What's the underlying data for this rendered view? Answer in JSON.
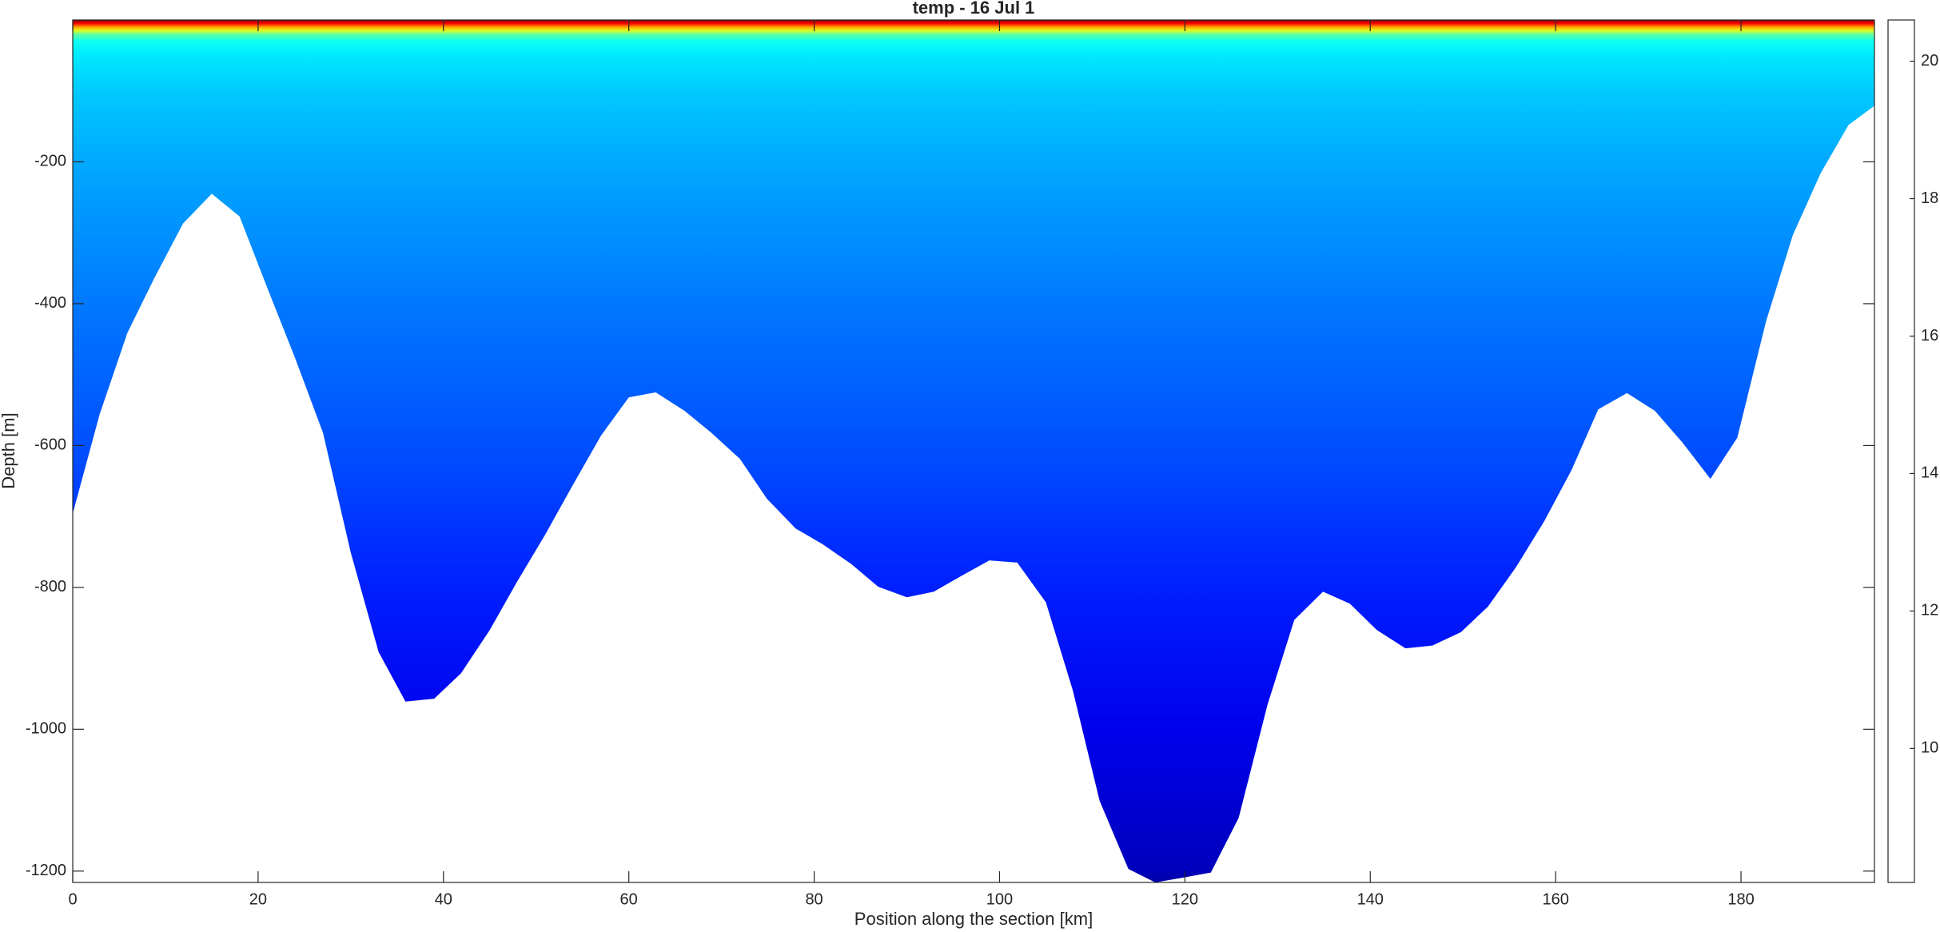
{
  "chart_data": {
    "type": "section",
    "title": "temp - 16 Jul 1",
    "xlabel": "Position along the section [km]",
    "ylabel": "Depth [m]",
    "xlim": [
      0,
      194.4
    ],
    "ylim": [
      -1216,
      0
    ],
    "xticks": [
      0,
      20,
      40,
      60,
      80,
      100,
      120,
      140,
      160,
      180
    ],
    "yticks": [
      -1200,
      -1000,
      -800,
      -600,
      -400,
      -200
    ],
    "colormap": "jet",
    "clim": [
      8.05,
      20.6
    ],
    "cticks": [
      10,
      12,
      14,
      16,
      18,
      20
    ],
    "bottom_x": [
      0,
      2.9,
      5.9,
      8.8,
      11.9,
      15.0,
      18.0,
      21.0,
      24.0,
      27.0,
      30.0,
      33.0,
      35.9,
      39.0,
      41.9,
      45.0,
      47.9,
      51.0,
      53.9,
      57.0,
      60.0,
      62.9,
      66.0,
      68.9,
      72.0,
      74.9,
      78.0,
      80.9,
      84.0,
      86.9,
      90.0,
      92.9,
      96.0,
      98.9,
      101.9,
      105.0,
      107.9,
      110.8,
      113.9,
      116.8,
      119.9,
      122.8,
      125.8,
      128.9,
      131.8,
      134.9,
      137.8,
      140.7,
      143.8,
      146.7,
      149.8,
      152.7,
      155.7,
      158.8,
      161.7,
      164.6,
      167.7,
      170.7,
      173.7,
      176.7,
      179.6,
      182.7,
      185.6,
      188.6,
      191.6,
      194.4
    ],
    "bottom_depth": [
      -696,
      -556,
      -441,
      -364,
      -287,
      -245,
      -277,
      -378,
      -477,
      -582,
      -751,
      -891,
      -961,
      -957,
      -921,
      -860,
      -793,
      -725,
      -657,
      -586,
      -532,
      -525,
      -551,
      -582,
      -619,
      -675,
      -717,
      -739,
      -767,
      -799,
      -814,
      -806,
      -783,
      -762,
      -765,
      -821,
      -945,
      -1101,
      -1197,
      -1216,
      -1209,
      -1202,
      -1125,
      -966,
      -846,
      -806,
      -823,
      -860,
      -886,
      -882,
      -863,
      -827,
      -772,
      -706,
      -635,
      -549,
      -526,
      -551,
      -596,
      -647,
      -589,
      -425,
      -303,
      -216,
      -148,
      -121
    ],
    "profile_depth": [
      0,
      -5,
      -10,
      -15,
      -20,
      -30,
      -50,
      -100,
      -200,
      -400,
      -600,
      -800,
      -1000,
      -1200,
      -1216
    ],
    "profile_temp": [
      20.5,
      19,
      17,
      15.5,
      14,
      12.9,
      12.5,
      12.1,
      11.7,
      11.1,
      10.6,
      10.0,
      9.4,
      8.8,
      8.5
    ]
  }
}
